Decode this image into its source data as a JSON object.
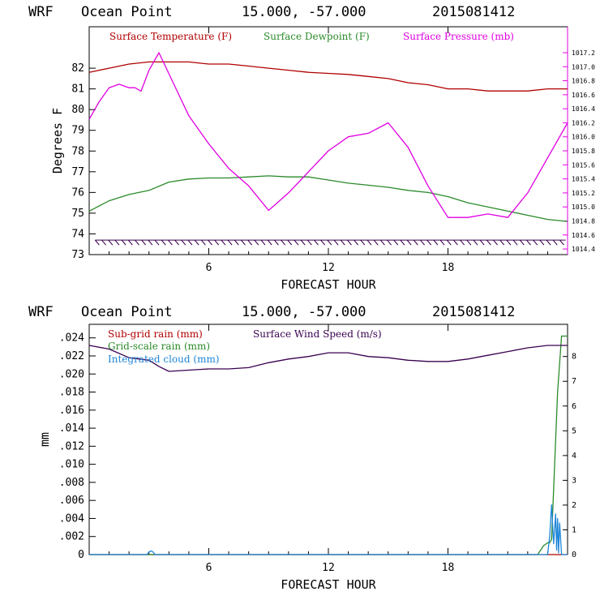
{
  "chart_data": [
    {
      "type": "line",
      "header": {
        "model": "WRF",
        "location": "Ocean Point",
        "coords": "15.000, -57.000",
        "run": "2015081412"
      },
      "xlabel": "FORECAST HOUR",
      "ylabel": "Degrees F",
      "xlim": [
        0,
        24
      ],
      "ylim": [
        73,
        84
      ],
      "x_ticks": [
        "6",
        "12",
        "18"
      ],
      "y_ticks": [
        "73",
        "74",
        "75",
        "76",
        "77",
        "78",
        "79",
        "80",
        "81",
        "82"
      ],
      "y2_ticks": [
        "1014.4",
        "1014.6",
        "1014.8",
        "1015.0",
        "1015.2",
        "1015.4",
        "1015.6",
        "1015.8",
        "1016.0",
        "1016.2",
        "1016.4",
        "1016.6",
        "1016.8",
        "1017.0",
        "1017.2"
      ],
      "y2lim": [
        1014.32,
        1017.57
      ],
      "wind_barbs": "row of wind barbs along the bottom of the panel",
      "series": [
        {
          "name": "Surface Temperature (F)",
          "color": "#b00000",
          "axis": "left",
          "x": [
            0,
            1,
            2,
            3,
            4,
            5,
            6,
            7,
            8,
            9,
            10,
            11,
            12,
            13,
            14,
            15,
            16,
            17,
            18,
            19,
            20,
            21,
            22,
            23,
            24
          ],
          "values": [
            81.8,
            82.0,
            82.2,
            82.3,
            82.3,
            82.3,
            82.2,
            82.2,
            82.1,
            82.0,
            81.9,
            81.8,
            81.75,
            81.7,
            81.6,
            81.5,
            81.3,
            81.2,
            81.0,
            81.0,
            80.9,
            80.9,
            80.9,
            81.0,
            81.0
          ]
        },
        {
          "name": "Surface Dewpoint (F)",
          "color": "#2a8a2a",
          "axis": "left",
          "x": [
            0,
            1,
            2,
            3,
            4,
            5,
            6,
            7,
            8,
            9,
            10,
            11,
            12,
            13,
            14,
            15,
            16,
            17,
            18,
            19,
            20,
            21,
            22,
            23,
            24
          ],
          "values": [
            75.1,
            75.6,
            75.9,
            76.1,
            76.5,
            76.65,
            76.7,
            76.7,
            76.75,
            76.8,
            76.75,
            76.75,
            76.6,
            76.45,
            76.35,
            76.25,
            76.1,
            76.0,
            75.8,
            75.5,
            75.3,
            75.1,
            74.9,
            74.7,
            74.6
          ]
        },
        {
          "name": "Surface Pressure (mb)",
          "color": "#e000e0",
          "axis": "right",
          "x": [
            0,
            0.5,
            1,
            1.5,
            2,
            2.3,
            2.6,
            3,
            3.5,
            4,
            5,
            6,
            7,
            8,
            9,
            10,
            11,
            12,
            13,
            14,
            15,
            16,
            17,
            18,
            19,
            20,
            21,
            22,
            23,
            24
          ],
          "values": [
            1016.25,
            1016.5,
            1016.7,
            1016.75,
            1016.7,
            1016.7,
            1016.65,
            1016.95,
            1017.2,
            1016.9,
            1016.3,
            1015.9,
            1015.55,
            1015.3,
            1014.95,
            1015.2,
            1015.5,
            1015.8,
            1016.0,
            1016.05,
            1016.2,
            1015.85,
            1015.3,
            1014.85,
            1014.85,
            1014.9,
            1014.85,
            1015.2,
            1015.7,
            1016.2
          ]
        }
      ]
    },
    {
      "type": "line",
      "header": {
        "model": "WRF",
        "location": "Ocean Point",
        "coords": "15.000, -57.000",
        "run": "2015081412"
      },
      "xlabel": "FORECAST HOUR",
      "ylabel": "mm",
      "xlim": [
        0,
        24
      ],
      "ylim": [
        0,
        0.0255
      ],
      "x_ticks": [
        "6",
        "12",
        "18"
      ],
      "y_ticks": [
        "0",
        ".002",
        ".004",
        ".006",
        ".008",
        ".010",
        ".012",
        ".014",
        ".016",
        ".018",
        ".020",
        ".022",
        ".024"
      ],
      "y2_ticks": [
        "0",
        "1",
        "2",
        "3",
        "4",
        "5",
        "6",
        "7",
        "8"
      ],
      "y2lim": [
        0,
        9.3
      ],
      "series": [
        {
          "name": "Sub-grid rain (mm)",
          "color": "#b00000",
          "axis": "left",
          "x": [
            0,
            24
          ],
          "values": [
            0,
            0
          ]
        },
        {
          "name": "Grid-scale rain (mm)",
          "color": "#2a8a2a",
          "axis": "left",
          "x": [
            0,
            22.5,
            22.8,
            23.0,
            23.1,
            23.2,
            23.5,
            23.7,
            24
          ],
          "values": [
            0,
            0,
            0.001,
            0.0013,
            0.0013,
            0.0017,
            0.018,
            0.0242,
            0.0242
          ]
        },
        {
          "name": "Integrated cloud (mm)",
          "color": "#1f86d8",
          "axis": "left",
          "x": [
            0,
            2.9,
            3.0,
            3.1,
            3.2,
            3.3,
            23.0,
            23.1,
            23.2,
            23.3,
            23.4,
            23.45,
            23.5,
            23.55,
            23.6,
            23.7,
            23.8,
            24
          ],
          "values": [
            0,
            0,
            0.0003,
            0.0004,
            0.0003,
            0,
            0,
            0.002,
            0.0055,
            0.0012,
            0.0045,
            0.0005,
            0.004,
            0.0002,
            0.0035,
            0,
            0,
            0
          ]
        },
        {
          "name": "Surface Wind Speed (m/s)",
          "color": "#3a0050",
          "axis": "right",
          "x": [
            0,
            1,
            2,
            3,
            3.5,
            4,
            5,
            6,
            7,
            8,
            9,
            10,
            11,
            12,
            13,
            14,
            15,
            16,
            17,
            18,
            19,
            20,
            21,
            22,
            23,
            24
          ],
          "values": [
            8.45,
            8.3,
            7.95,
            7.85,
            7.6,
            7.4,
            7.45,
            7.5,
            7.5,
            7.55,
            7.75,
            7.9,
            8.0,
            8.15,
            8.15,
            8.0,
            7.95,
            7.85,
            7.8,
            7.8,
            7.9,
            8.05,
            8.2,
            8.35,
            8.45,
            8.45
          ]
        }
      ]
    }
  ]
}
